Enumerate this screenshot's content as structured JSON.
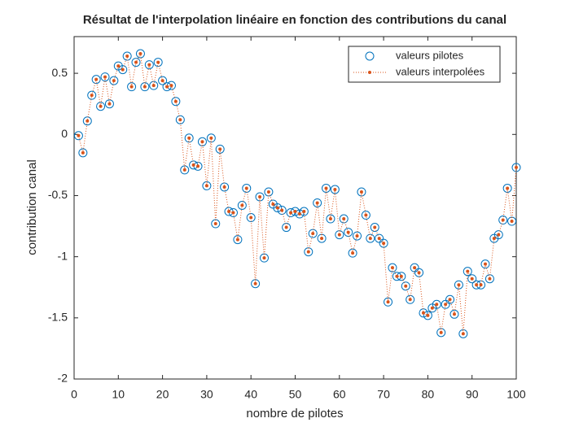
{
  "chart_data": {
    "type": "line",
    "title": "Résultat de l'interpolation linéaire en fonction des contributions du canal",
    "x_label": "nombre de pilotes",
    "y_label": "contribution canal",
    "xlim": [
      0,
      100
    ],
    "ylim": [
      -2,
      0.8
    ],
    "xticks": [
      0,
      10,
      20,
      30,
      40,
      50,
      60,
      70,
      80,
      90,
      100
    ],
    "yticks": [
      -2,
      -1.5,
      -1,
      -0.5,
      0,
      0.5
    ],
    "legend": "top-right",
    "x": [
      1,
      2,
      3,
      4,
      5,
      6,
      7,
      8,
      9,
      10,
      11,
      12,
      13,
      14,
      15,
      16,
      17,
      18,
      19,
      20,
      21,
      22,
      23,
      24,
      25,
      26,
      27,
      28,
      29,
      30,
      31,
      32,
      33,
      34,
      35,
      36,
      37,
      38,
      39,
      40,
      41,
      42,
      43,
      44,
      45,
      46,
      47,
      48,
      49,
      50,
      51,
      52,
      53,
      54,
      55,
      56,
      57,
      58,
      59,
      60,
      61,
      62,
      63,
      64,
      65,
      66,
      67,
      68,
      69,
      70,
      71,
      72,
      73,
      74,
      75,
      76,
      77,
      78,
      79,
      80,
      81,
      82,
      83,
      84,
      85,
      86,
      87,
      88,
      89,
      90,
      91,
      92,
      93,
      94,
      95,
      96,
      97,
      98,
      99,
      100
    ],
    "series": [
      {
        "name": "valeurs pilotes",
        "color": "#0072bd",
        "marker": "circle",
        "values": [
          -0.01,
          -0.15,
          0.11,
          0.32,
          0.45,
          0.23,
          0.47,
          0.25,
          0.44,
          0.56,
          0.53,
          0.64,
          0.39,
          0.59,
          0.66,
          0.39,
          0.57,
          0.4,
          0.59,
          0.44,
          0.39,
          0.4,
          0.27,
          0.12,
          -0.29,
          -0.03,
          -0.25,
          -0.26,
          -0.06,
          -0.42,
          -0.03,
          -0.73,
          -0.12,
          -0.43,
          -0.63,
          -0.64,
          -0.86,
          -0.58,
          -0.44,
          -0.68,
          -1.22,
          -0.51,
          -1.01,
          -0.47,
          -0.57,
          -0.6,
          -0.62,
          -0.76,
          -0.64,
          -0.63,
          -0.65,
          -0.63,
          -0.96,
          -0.81,
          -0.56,
          -0.85,
          -0.44,
          -0.69,
          -0.45,
          -0.82,
          -0.69,
          -0.8,
          -0.97,
          -0.83,
          -0.47,
          -0.66,
          -0.85,
          -0.76,
          -0.85,
          -0.89,
          -1.37,
          -1.09,
          -1.16,
          -1.16,
          -1.24,
          -1.35,
          -1.09,
          -1.13,
          -1.46,
          -1.48,
          -1.42,
          -1.39,
          -1.62,
          -1.39,
          -1.35,
          -1.47,
          -1.23,
          -1.63,
          -1.12,
          -1.18,
          -1.23,
          -1.23,
          -1.06,
          -1.18,
          -0.85,
          -0.82,
          -0.7,
          -0.44,
          -0.71,
          -0.27
        ]
      },
      {
        "name": "valeurs interpolées",
        "color": "#d95319",
        "marker": "dot",
        "values": [
          -0.01,
          -0.15,
          0.11,
          0.32,
          0.45,
          0.23,
          0.47,
          0.25,
          0.44,
          0.56,
          0.53,
          0.64,
          0.39,
          0.59,
          0.66,
          0.39,
          0.57,
          0.4,
          0.59,
          0.44,
          0.39,
          0.4,
          0.27,
          0.12,
          -0.29,
          -0.03,
          -0.25,
          -0.26,
          -0.06,
          -0.42,
          -0.03,
          -0.73,
          -0.12,
          -0.43,
          -0.63,
          -0.64,
          -0.86,
          -0.58,
          -0.44,
          -0.68,
          -1.22,
          -0.51,
          -1.01,
          -0.47,
          -0.57,
          -0.6,
          -0.62,
          -0.76,
          -0.64,
          -0.63,
          -0.65,
          -0.63,
          -0.96,
          -0.81,
          -0.56,
          -0.85,
          -0.44,
          -0.69,
          -0.45,
          -0.82,
          -0.69,
          -0.8,
          -0.97,
          -0.83,
          -0.47,
          -0.66,
          -0.85,
          -0.76,
          -0.85,
          -0.89,
          -1.37,
          -1.09,
          -1.16,
          -1.16,
          -1.24,
          -1.35,
          -1.09,
          -1.13,
          -1.46,
          -1.48,
          -1.42,
          -1.39,
          -1.62,
          -1.39,
          -1.35,
          -1.47,
          -1.23,
          -1.63,
          -1.12,
          -1.18,
          -1.23,
          -1.23,
          -1.06,
          -1.18,
          -0.85,
          -0.82,
          -0.7,
          -0.44,
          -0.71,
          -0.27
        ]
      }
    ]
  }
}
